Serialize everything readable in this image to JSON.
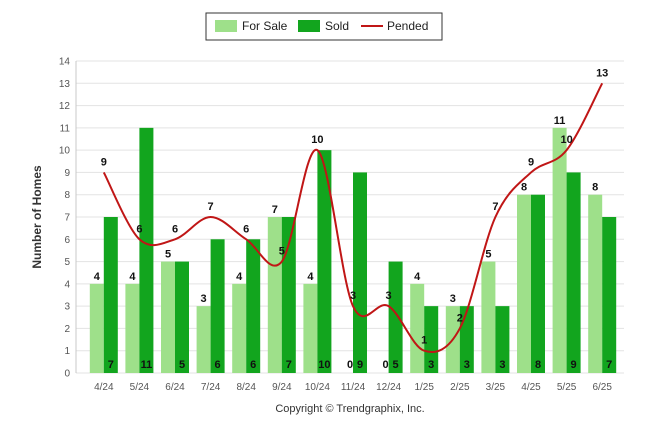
{
  "chart_data": {
    "type": "bar",
    "title": "",
    "xlabel": "",
    "ylabel": "Number of Homes",
    "ylim": [
      0,
      14
    ],
    "yticks": [
      0,
      1,
      2,
      3,
      4,
      5,
      6,
      7,
      8,
      9,
      10,
      11,
      12,
      13,
      14
    ],
    "grid": true,
    "legend_position": "top-center",
    "categories": [
      "4/24",
      "5/24",
      "6/24",
      "7/24",
      "8/24",
      "9/24",
      "10/24",
      "11/24",
      "12/24",
      "1/25",
      "2/25",
      "3/25",
      "4/25",
      "5/25",
      "6/25"
    ],
    "series": [
      {
        "name": "For Sale",
        "type": "bar",
        "color": "#9ee08a",
        "values": [
          4,
          4,
          5,
          3,
          4,
          7,
          4,
          0,
          0,
          4,
          3,
          5,
          8,
          11,
          8
        ]
      },
      {
        "name": "Sold",
        "type": "bar",
        "color": "#12a51e",
        "values": [
          7,
          11,
          5,
          6,
          6,
          7,
          10,
          9,
          5,
          3,
          3,
          3,
          8,
          9,
          7
        ]
      },
      {
        "name": "Pended",
        "type": "line",
        "color": "#c01616",
        "values": [
          9,
          6,
          6,
          7,
          6,
          5,
          10,
          3,
          3,
          1,
          2,
          7,
          9,
          10,
          13
        ]
      }
    ]
  },
  "footer": {
    "copyright": "Copyright © Trendgraphix, Inc."
  }
}
